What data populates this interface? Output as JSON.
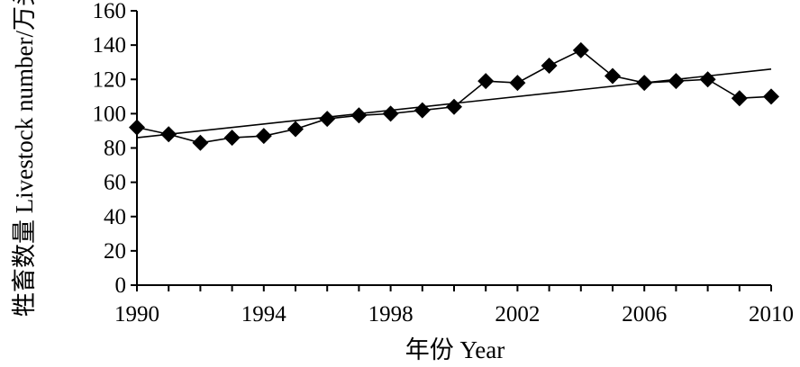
{
  "chart_data": {
    "type": "line",
    "xlabel": "年份 Year",
    "ylabel": "牲畜数量 Livestock number/万头",
    "xlim": [
      1990,
      2010
    ],
    "ylim": [
      0,
      160
    ],
    "xticks": [
      1990,
      1994,
      1998,
      2002,
      2006,
      2010
    ],
    "yticks": [
      0,
      20,
      40,
      60,
      80,
      100,
      120,
      140,
      160
    ],
    "grid": false,
    "legend": "none",
    "series": [
      {
        "marker": "diamond",
        "color": "#000000",
        "x": [
          1990,
          1991,
          1992,
          1993,
          1994,
          1995,
          1996,
          1997,
          1998,
          1999,
          2000,
          2001,
          2002,
          2003,
          2004,
          2005,
          2006,
          2007,
          2008,
          2009,
          2010
        ],
        "y": [
          92,
          88,
          83,
          86,
          87,
          91,
          97,
          99,
          100,
          102,
          104,
          119,
          118,
          128,
          137,
          122,
          118,
          119,
          120,
          109,
          110
        ]
      }
    ],
    "trendline": {
      "x": [
        1990,
        2010
      ],
      "y": [
        86,
        126
      ],
      "color": "#000000"
    }
  }
}
